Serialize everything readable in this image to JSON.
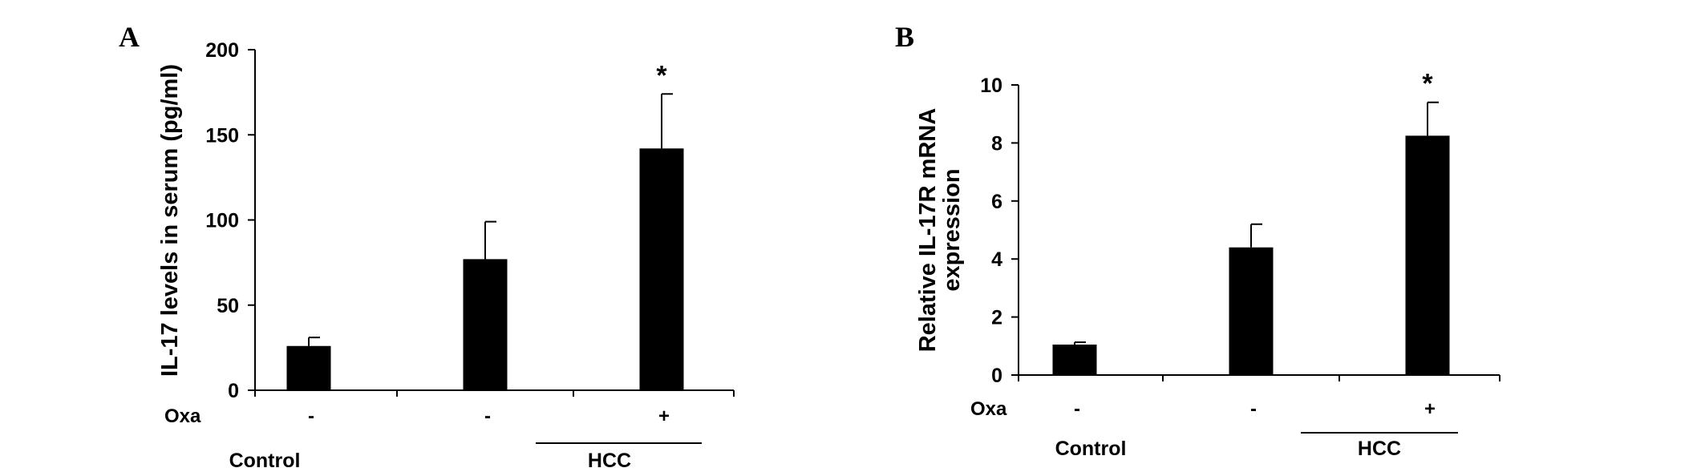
{
  "chart_data": [
    {
      "type": "bar",
      "panel_label": "A",
      "ylabel": "IL-17 levels in serum (pg/ml)",
      "ylim": [
        0,
        200
      ],
      "yticks": [
        "0",
        "50",
        "100",
        "150",
        "200"
      ],
      "treatment_label": "Oxa",
      "treatments": [
        "-",
        "-",
        "+"
      ],
      "values": [
        26,
        77,
        142
      ],
      "errors": [
        5,
        22,
        32
      ],
      "significance": [
        "",
        "",
        "*"
      ],
      "groups": [
        {
          "label": "Control",
          "bars": [
            0
          ]
        },
        {
          "label": "HCC",
          "bars": [
            1,
            2
          ]
        }
      ],
      "bar_color": "#000000"
    },
    {
      "type": "bar",
      "panel_label": "B",
      "ylabel": [
        "Relative  IL-17R mRNA",
        "expression"
      ],
      "ylim": [
        0,
        10
      ],
      "yticks": [
        "0",
        "2",
        "4",
        "6",
        "8",
        "10"
      ],
      "treatment_label": "Oxa",
      "treatments": [
        "-",
        "-",
        "+"
      ],
      "values": [
        1.05,
        4.4,
        8.25
      ],
      "errors": [
        0.08,
        0.8,
        1.15
      ],
      "significance": [
        "",
        "",
        "*"
      ],
      "groups": [
        {
          "label": "Control",
          "bars": [
            0
          ]
        },
        {
          "label": "HCC",
          "bars": [
            1,
            2
          ]
        }
      ],
      "bar_color": "#000000"
    }
  ]
}
